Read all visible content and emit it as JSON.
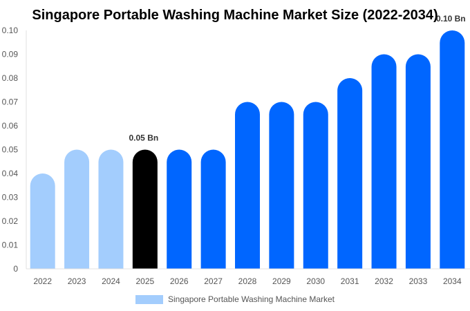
{
  "chart_data": {
    "type": "bar",
    "title": "Singapore Portable Washing Machine Market Size (2022-2034)",
    "categories": [
      "2022",
      "2023",
      "2024",
      "2025",
      "2026",
      "2027",
      "2028",
      "2029",
      "2030",
      "2031",
      "2032",
      "2033",
      "2034"
    ],
    "series": [
      {
        "name": "Singapore Portable Washing Machine Market",
        "values": [
          0.04,
          0.05,
          0.05,
          0.05,
          0.05,
          0.05,
          0.07,
          0.07,
          0.07,
          0.08,
          0.09,
          0.09,
          0.1
        ]
      }
    ],
    "bar_colors": [
      "#a3cdfd",
      "#a3cdfd",
      "#a3cdfd",
      "#000000",
      "#0066ff",
      "#0066ff",
      "#0066ff",
      "#0066ff",
      "#0066ff",
      "#0066ff",
      "#0066ff",
      "#0066ff",
      "#0066ff"
    ],
    "data_labels": [
      {
        "category": "2025",
        "text": "0.05 Bn"
      },
      {
        "category": "2034",
        "text": "0.10 Bn"
      }
    ],
    "yticks": [
      "0",
      "0.01",
      "0.02",
      "0.03",
      "0.04",
      "0.05",
      "0.06",
      "0.07",
      "0.08",
      "0.09",
      "0.10"
    ],
    "ylim": [
      0,
      0.1
    ],
    "xlabel": "",
    "ylabel": "",
    "grid": false,
    "legend": {
      "position": "bottom",
      "color": "#a3cdfd"
    }
  }
}
